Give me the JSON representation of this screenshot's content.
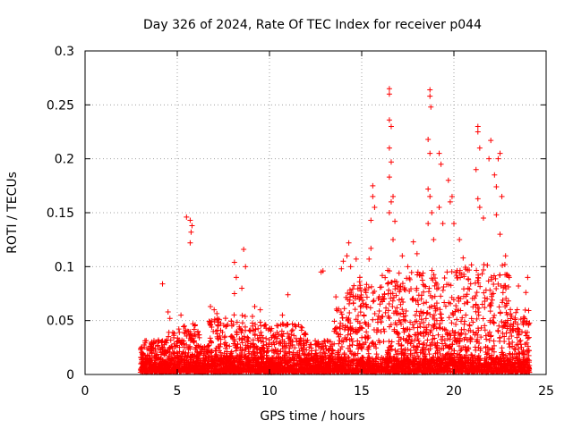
{
  "chart_data": {
    "type": "scatter",
    "title": "Day 326 of 2024, Rate Of TEC Index for receiver p044",
    "xlabel": "GPS time / hours",
    "ylabel": "ROTI / TECUs",
    "xlim": [
      0,
      25
    ],
    "ylim": [
      0,
      0.3
    ],
    "x_ticks": [
      0,
      5,
      10,
      15,
      20,
      25
    ],
    "x_tick_labels": [
      "0",
      "5",
      "10",
      "15",
      "20",
      "25"
    ],
    "y_ticks": [
      0,
      0.05,
      0.1,
      0.15,
      0.2,
      0.25,
      0.3
    ],
    "y_tick_labels": [
      "0",
      "0.05",
      "0.1",
      "0.15",
      "0.2",
      "0.25",
      "0.3"
    ],
    "grid": true,
    "marker": "+",
    "color": "#ff0000",
    "series": [
      {
        "name": "ROTI",
        "points": [
          [
            4.2,
            0.084
          ],
          [
            5.5,
            0.146
          ],
          [
            5.7,
            0.143
          ],
          [
            5.75,
            0.132
          ],
          [
            5.7,
            0.122
          ],
          [
            5.8,
            0.138
          ],
          [
            4.5,
            0.058
          ],
          [
            4.6,
            0.052
          ],
          [
            5.2,
            0.055
          ],
          [
            6.8,
            0.063
          ],
          [
            7.0,
            0.06
          ],
          [
            8.1,
            0.104
          ],
          [
            8.2,
            0.09
          ],
          [
            8.1,
            0.075
          ],
          [
            8.6,
            0.116
          ],
          [
            8.7,
            0.1
          ],
          [
            8.5,
            0.08
          ],
          [
            9.2,
            0.063
          ],
          [
            9.5,
            0.06
          ],
          [
            10.7,
            0.055
          ],
          [
            11.0,
            0.074
          ],
          [
            12.8,
            0.095
          ],
          [
            12.9,
            0.096
          ],
          [
            13.6,
            0.072
          ],
          [
            13.9,
            0.098
          ],
          [
            14.0,
            0.105
          ],
          [
            14.2,
            0.11
          ],
          [
            14.3,
            0.122
          ],
          [
            14.4,
            0.1
          ],
          [
            14.7,
            0.107
          ],
          [
            14.9,
            0.09
          ],
          [
            15.4,
            0.107
          ],
          [
            15.5,
            0.117
          ],
          [
            15.6,
            0.175
          ],
          [
            15.6,
            0.165
          ],
          [
            15.7,
            0.155
          ],
          [
            15.5,
            0.143
          ],
          [
            16.5,
            0.265
          ],
          [
            16.5,
            0.26
          ],
          [
            16.5,
            0.236
          ],
          [
            16.6,
            0.23
          ],
          [
            16.5,
            0.21
          ],
          [
            16.6,
            0.197
          ],
          [
            16.5,
            0.183
          ],
          [
            16.7,
            0.165
          ],
          [
            16.6,
            0.16
          ],
          [
            16.5,
            0.15
          ],
          [
            16.8,
            0.142
          ],
          [
            16.7,
            0.125
          ],
          [
            17.2,
            0.11
          ],
          [
            17.5,
            0.1
          ],
          [
            17.8,
            0.123
          ],
          [
            18.0,
            0.112
          ],
          [
            18.7,
            0.264
          ],
          [
            18.7,
            0.258
          ],
          [
            18.75,
            0.248
          ],
          [
            18.6,
            0.218
          ],
          [
            18.7,
            0.205
          ],
          [
            18.6,
            0.172
          ],
          [
            18.7,
            0.165
          ],
          [
            18.8,
            0.15
          ],
          [
            18.6,
            0.14
          ],
          [
            18.9,
            0.125
          ],
          [
            19.2,
            0.205
          ],
          [
            19.3,
            0.195
          ],
          [
            19.2,
            0.155
          ],
          [
            19.4,
            0.14
          ],
          [
            19.7,
            0.18
          ],
          [
            19.8,
            0.16
          ],
          [
            19.9,
            0.165
          ],
          [
            20.0,
            0.14
          ],
          [
            20.3,
            0.125
          ],
          [
            20.5,
            0.108
          ],
          [
            21.3,
            0.23
          ],
          [
            21.3,
            0.225
          ],
          [
            21.4,
            0.21
          ],
          [
            21.2,
            0.19
          ],
          [
            21.3,
            0.163
          ],
          [
            21.4,
            0.155
          ],
          [
            21.6,
            0.145
          ],
          [
            21.9,
            0.2
          ],
          [
            22.0,
            0.217
          ],
          [
            22.2,
            0.185
          ],
          [
            22.3,
            0.174
          ],
          [
            22.4,
            0.2
          ],
          [
            22.5,
            0.205
          ],
          [
            22.6,
            0.165
          ],
          [
            22.3,
            0.148
          ],
          [
            22.5,
            0.13
          ],
          [
            22.8,
            0.11
          ],
          [
            23.0,
            0.09
          ],
          [
            23.5,
            0.082
          ],
          [
            24.0,
            0.09
          ],
          [
            23.9,
            0.076
          ]
        ]
      }
    ]
  }
}
